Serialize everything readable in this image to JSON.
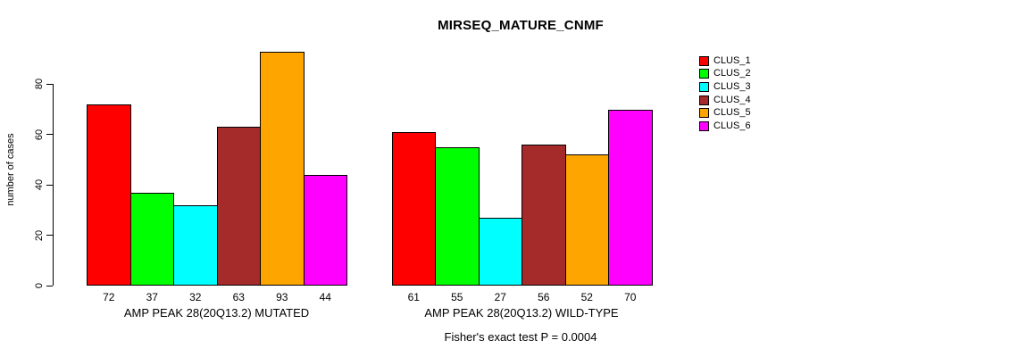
{
  "title": "MIRSEQ_MATURE_CNMF",
  "y_axis": {
    "label": "number of cases",
    "ticks": [
      "0",
      "20",
      "40",
      "60",
      "80"
    ]
  },
  "footer": "Fisher's exact test P = 0.0004",
  "legend": {
    "items": [
      {
        "label": "CLUS_1",
        "color": "#ff0000"
      },
      {
        "label": "CLUS_2",
        "color": "#00ff00"
      },
      {
        "label": "CLUS_3",
        "color": "#00ffff"
      },
      {
        "label": "CLUS_4",
        "color": "#a52a2a"
      },
      {
        "label": "CLUS_5",
        "color": "#ffa500"
      },
      {
        "label": "CLUS_6",
        "color": "#ff00ff"
      }
    ]
  },
  "chart_data": {
    "type": "bar",
    "title": "MIRSEQ_MATURE_CNMF",
    "xlabel": "",
    "ylabel": "number of cases",
    "ylim": [
      0,
      93
    ],
    "y_ticks": [
      0,
      20,
      40,
      60,
      80
    ],
    "grid": false,
    "legend_position": "right",
    "series_names": [
      "CLUS_1",
      "CLUS_2",
      "CLUS_3",
      "CLUS_4",
      "CLUS_5",
      "CLUS_6"
    ],
    "colors": [
      "#ff0000",
      "#00ff00",
      "#00ffff",
      "#a52a2a",
      "#ffa500",
      "#ff00ff"
    ],
    "groups": [
      {
        "label": "AMP PEAK 28(20Q13.2) MUTATED",
        "values": [
          72,
          37,
          32,
          63,
          93,
          44
        ]
      },
      {
        "label": "AMP PEAK 28(20Q13.2) WILD-TYPE",
        "values": [
          61,
          55,
          27,
          56,
          52,
          70
        ]
      }
    ],
    "annotation": "Fisher's exact test P = 0.0004"
  }
}
